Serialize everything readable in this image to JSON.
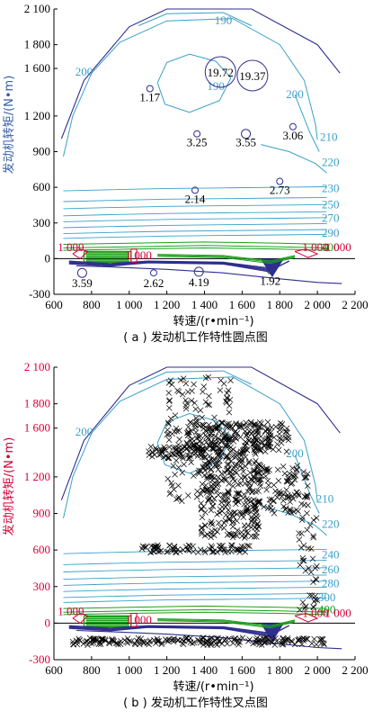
{
  "colors": {
    "boundary": "#2e2e8f",
    "contour_cyan": "#3aa0c8",
    "contour_green": "#1aa01a",
    "contour_red": "#d6003a",
    "axis_title_blue": "#3a5fa8",
    "axis_title_red": "#d6003a",
    "marker": "#000000"
  },
  "chart_data": [
    {
      "type": "scatter",
      "caption": "( a ) 发动机工作特性圆点图",
      "xlabel": "转速/(r•min⁻¹)",
      "ylabel": "发动机转矩/(N•m)",
      "xlim": [
        600,
        2200
      ],
      "ylim": [
        -300,
        2100
      ],
      "xticks": [
        "600",
        "800",
        "1 000",
        "1 200",
        "1 400",
        "1 600",
        "1 800",
        "2 000",
        "2 200"
      ],
      "yticks": [
        "-300",
        "0",
        "300",
        "600",
        "900",
        "1 200",
        "1 600",
        "1 800",
        "2 100"
      ],
      "contour_labels": [
        {
          "text": "190",
          "x": 1500,
          "y": 2000,
          "color": "cyan"
        },
        {
          "text": "200",
          "x": 760,
          "y": 1570,
          "color": "cyan"
        },
        {
          "text": "190",
          "x": 1460,
          "y": 1450,
          "color": "cyan"
        },
        {
          "text": "200",
          "x": 1880,
          "y": 1380,
          "color": "cyan"
        },
        {
          "text": "210",
          "x": 2060,
          "y": 1020,
          "color": "cyan"
        },
        {
          "text": "220",
          "x": 2070,
          "y": 810,
          "color": "cyan"
        },
        {
          "text": "230",
          "x": 2070,
          "y": 590,
          "color": "cyan"
        },
        {
          "text": "250",
          "x": 2070,
          "y": 455,
          "color": "cyan"
        },
        {
          "text": "270",
          "x": 2070,
          "y": 340,
          "color": "cyan"
        },
        {
          "text": "290",
          "x": 2070,
          "y": 215,
          "color": "cyan"
        },
        {
          "text": "400",
          "x": 2070,
          "y": 95,
          "color": "green"
        },
        {
          "text": "1 000",
          "x": 690,
          "y": 95,
          "color": "red"
        },
        {
          "text": "1 000",
          "x": 1050,
          "y": 25,
          "color": "red"
        },
        {
          "text": "1 000",
          "x": 1990,
          "y": 95,
          "color": "red"
        },
        {
          "text": "1 000",
          "x": 2110,
          "y": 95,
          "color": "red"
        }
      ],
      "points": [
        {
          "label": "19.72",
          "x": 1485,
          "y": 1570
        },
        {
          "label": "19.37",
          "x": 1655,
          "y": 1540
        },
        {
          "label": "1.17",
          "x": 1110,
          "y": 1430
        },
        {
          "label": "3.25",
          "x": 1360,
          "y": 1050
        },
        {
          "label": "3.55",
          "x": 1620,
          "y": 1050
        },
        {
          "label": "3.06",
          "x": 1870,
          "y": 1110
        },
        {
          "label": "2.14",
          "x": 1350,
          "y": 575
        },
        {
          "label": "2.73",
          "x": 1800,
          "y": 650
        },
        {
          "label": "3.59",
          "x": 750,
          "y": -120
        },
        {
          "label": "2.62",
          "x": 1130,
          "y": -120
        },
        {
          "label": "4.19",
          "x": 1370,
          "y": -110
        },
        {
          "label": "1.92",
          "x": 1750,
          "y": -100
        }
      ]
    },
    {
      "type": "scatter",
      "caption": "( b ) 发动机工作特性叉点图",
      "xlabel": "转速/(r•min⁻¹)",
      "ylabel": "发动机转矩/(N•m)",
      "xlim": [
        600,
        2200
      ],
      "ylim": [
        -300,
        2100
      ],
      "xticks": [
        "600",
        "800",
        "1 000",
        "1 200",
        "1 400",
        "1 600",
        "1 800",
        "2 000",
        "2 200"
      ],
      "yticks": [
        "-300",
        "0",
        "300",
        "600",
        "900",
        "1 200",
        "1 600",
        "1 800",
        "2 100"
      ],
      "contour_labels": [
        {
          "text": "200",
          "x": 760,
          "y": 1570,
          "color": "cyan"
        },
        {
          "text": "200",
          "x": 1880,
          "y": 1390,
          "color": "cyan"
        },
        {
          "text": "210",
          "x": 2040,
          "y": 1020,
          "color": "cyan"
        },
        {
          "text": "220",
          "x": 2070,
          "y": 810,
          "color": "cyan"
        },
        {
          "text": "240",
          "x": 2070,
          "y": 560,
          "color": "cyan"
        },
        {
          "text": "260",
          "x": 2070,
          "y": 440,
          "color": "cyan"
        },
        {
          "text": "280",
          "x": 2070,
          "y": 325,
          "color": "cyan"
        },
        {
          "text": "300",
          "x": 2050,
          "y": 210,
          "color": "cyan"
        },
        {
          "text": "400",
          "x": 2050,
          "y": 110,
          "color": "green"
        },
        {
          "text": "1 000",
          "x": 690,
          "y": 95,
          "color": "red"
        },
        {
          "text": "1 000",
          "x": 1050,
          "y": 25,
          "color": "red"
        },
        {
          "text": "1 000",
          "x": 1990,
          "y": 80,
          "color": "red"
        },
        {
          "text": "1 000",
          "x": 2110,
          "y": 80,
          "color": "red"
        }
      ]
    }
  ]
}
